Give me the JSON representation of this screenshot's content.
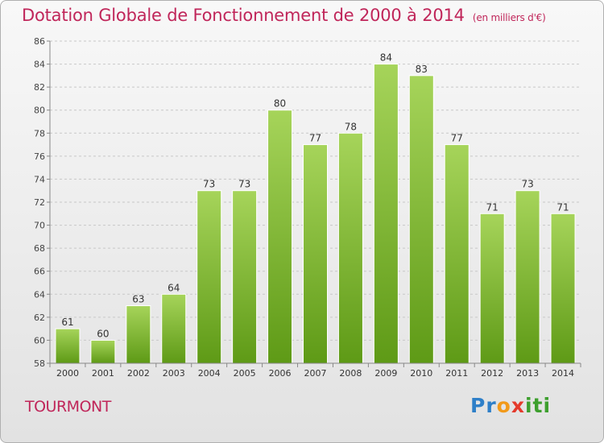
{
  "title": "Dotation Globale de Fonctionnement de 2000 à 2014",
  "unit": "(en milliers d'€)",
  "commune": "TOURMONT",
  "logo": {
    "p1": "Pr",
    "p2": "o",
    "p3": "x",
    "p4": "iti"
  },
  "colors": {
    "bar_light": "#a6d45a",
    "bar_dark": "#5e9a16",
    "title": "#c0265a"
  },
  "chart_data": {
    "type": "bar",
    "categories": [
      "2000",
      "2001",
      "2002",
      "2003",
      "2004",
      "2005",
      "2006",
      "2007",
      "2008",
      "2009",
      "2010",
      "2011",
      "2012",
      "2013",
      "2014"
    ],
    "values": [
      61,
      60,
      63,
      64,
      73,
      73,
      80,
      77,
      78,
      84,
      83,
      77,
      71,
      73,
      71
    ],
    "ylim": [
      58,
      86
    ],
    "yticks": [
      58,
      60,
      62,
      64,
      66,
      68,
      70,
      72,
      74,
      76,
      78,
      80,
      82,
      84,
      86
    ],
    "grid": "horizontal dashed",
    "data_labels": true
  }
}
